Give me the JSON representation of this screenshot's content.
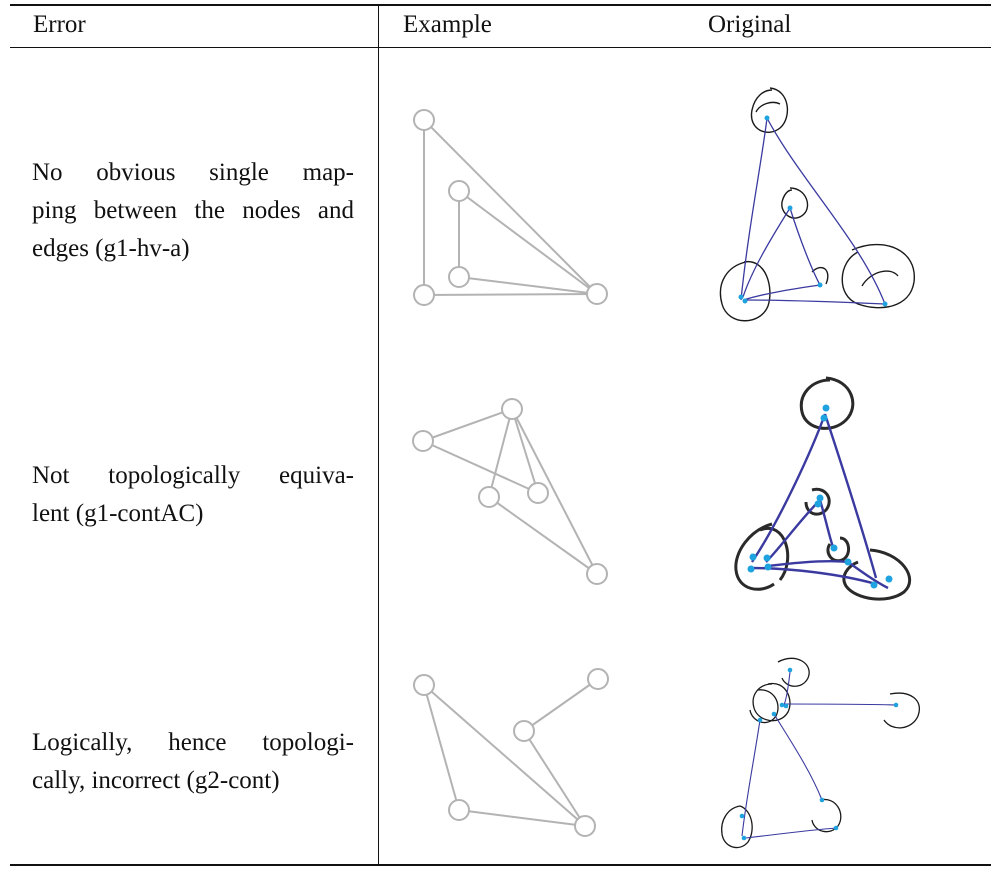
{
  "table": {
    "headers": {
      "error": "Error",
      "example": "Example",
      "original": "Original"
    },
    "rows": [
      {
        "error_lines": [
          "No obvious single map-",
          "ping between the nodes and",
          "edges (g1-hv-a)"
        ]
      },
      {
        "error_lines": [
          "Not topologically equiva-",
          "lent (g1-contAC)"
        ]
      },
      {
        "error_lines": [
          "Logically, hence topologi-",
          "cally, incorrect (g2-cont)"
        ]
      }
    ]
  },
  "colors": {
    "example_stroke": "#b3b3b3",
    "original_ink": "#1a1a1a",
    "original_edge": "#3a3aa0",
    "original_node": "#1fa2e0"
  }
}
